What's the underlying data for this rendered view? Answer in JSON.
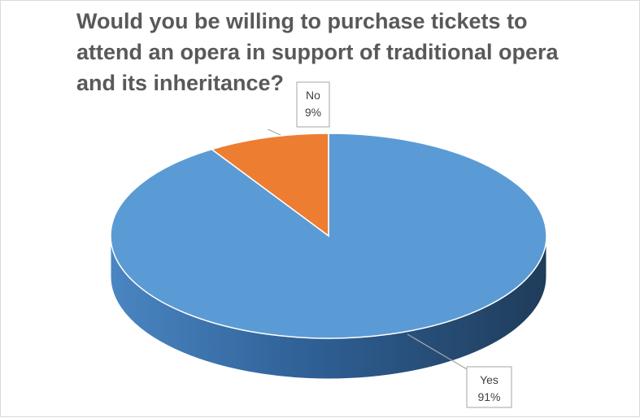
{
  "chart_data": {
    "type": "pie",
    "title": "Would you be willing to purchase tickets to attend an opera in support of traditional opera and its inheritance?",
    "slices": [
      {
        "label": "Yes",
        "value": 91,
        "display": "91%",
        "color": "#5b9bd5",
        "side_color": "#2e5f8f"
      },
      {
        "label": "No",
        "value": 9,
        "display": "9%",
        "color": "#ed7d31",
        "side_color": "#b85d1f"
      }
    ],
    "legend": "none",
    "data_labels": "callout"
  }
}
